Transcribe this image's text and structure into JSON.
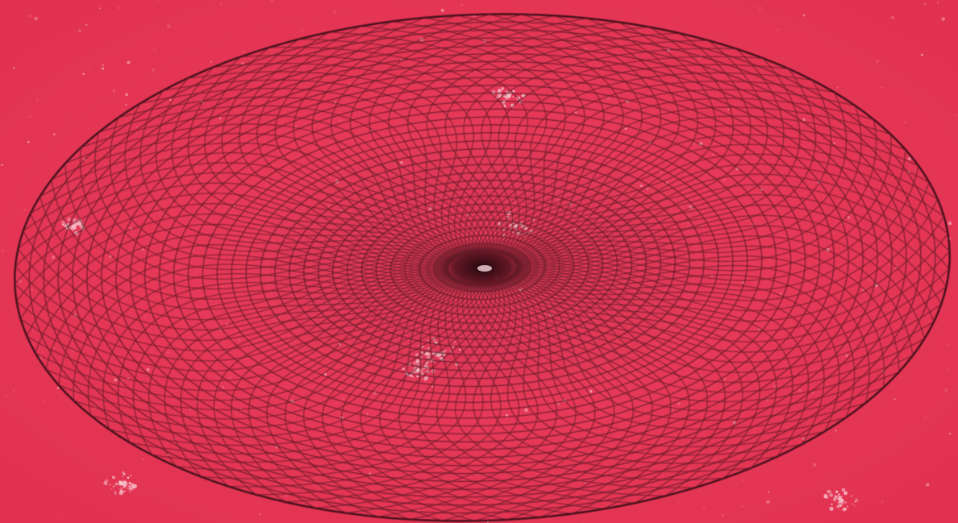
{
  "scene": {
    "subject": "wireframe-torus-icon",
    "colors": {
      "background": "#e63556",
      "background_light": "#ee5570",
      "wire": "#5a1a24",
      "wire_dark": "#3a0c14",
      "center_hole": "#2a0a10",
      "speckle": "#f7c9d2"
    },
    "wireframe": {
      "meridian_count": 90,
      "ring_count": 30
    }
  }
}
